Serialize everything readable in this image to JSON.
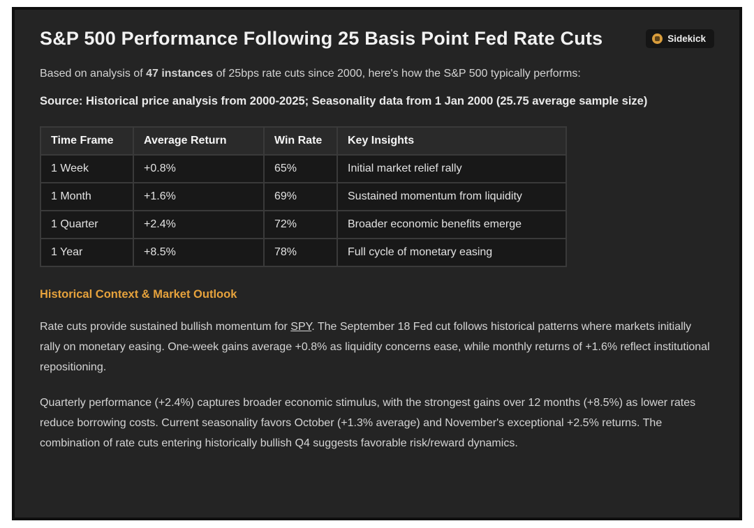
{
  "colors": {
    "page_bg": "#ffffff",
    "panel_bg": "#242424",
    "panel_border": "#0f0f0f",
    "accent_gold": "#e6a23c",
    "badge_icon_gold": "#d99d3c",
    "table_header_bg": "#2a2a2a",
    "table_cell_bg": "#181818",
    "table_grid": "#3a3a3a"
  },
  "header": {
    "title": "S&P 500 Performance Following 25 Basis Point Fed Rate Cuts",
    "badge": {
      "label": "Sidekick"
    }
  },
  "intro": {
    "part1": "Based on analysis of ",
    "emphasis": "47 instances",
    "part2": " of 25bps rate cuts since 2000, here's how the S&P 500 typically performs:"
  },
  "source_note": "Source: Historical price analysis from 2000-2025; Seasonality data from 1 Jan 2000 (25.75 average sample size)",
  "table": {
    "columns": [
      "Time Frame",
      "Average Return",
      "Win Rate",
      "Key Insights"
    ],
    "rows": [
      [
        "1 Week",
        "+0.8%",
        "65%",
        "Initial market relief rally"
      ],
      [
        "1 Month",
        "+1.6%",
        "69%",
        "Sustained momentum from liquidity"
      ],
      [
        "1 Quarter",
        "+2.4%",
        "72%",
        "Broader economic benefits emerge"
      ],
      [
        "1 Year",
        "+8.5%",
        "78%",
        "Full cycle of monetary easing"
      ]
    ]
  },
  "outlook": {
    "heading": "Historical Context & Market Outlook",
    "paragraph1": {
      "part1": "Rate cuts provide sustained bullish momentum for ",
      "link": "SPY",
      "part2": ". The September 18 Fed cut follows historical patterns where markets initially rally on monetary easing. One-week gains average +0.8% as liquidity concerns ease, while monthly returns of +1.6% reflect institutional repositioning."
    },
    "paragraph2": "Quarterly performance (+2.4%) captures broader economic stimulus, with the strongest gains over 12 months (+8.5%) as lower rates reduce borrowing costs. Current seasonality favors October (+1.3% average) and November's exceptional +2.5% returns. The combination of rate cuts entering historically bullish Q4 suggests favorable risk/reward dynamics."
  }
}
